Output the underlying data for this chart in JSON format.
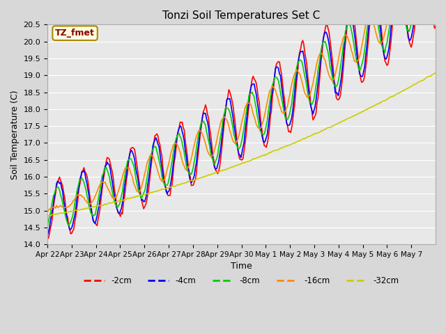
{
  "title": "Tonzi Soil Temperatures Set C",
  "xlabel": "Time",
  "ylabel": "Soil Temperature (C)",
  "ylim": [
    14.0,
    20.5
  ],
  "annotation": "TZ_fmet",
  "legend_labels": [
    "-2cm",
    "-4cm",
    "-8cm",
    "-16cm",
    "-32cm"
  ],
  "legend_colors": [
    "#ff0000",
    "#0000ff",
    "#00cc00",
    "#ff8800",
    "#cccc00"
  ],
  "x_tick_labels": [
    "Apr 22",
    "Apr 23",
    "Apr 24",
    "Apr 25",
    "Apr 26",
    "Apr 27",
    "Apr 28",
    "Apr 29",
    "Apr 30",
    "May 1",
    "May 2",
    "May 3",
    "May 4",
    "May 5",
    "May 6",
    "May 7"
  ],
  "n_days": 16
}
